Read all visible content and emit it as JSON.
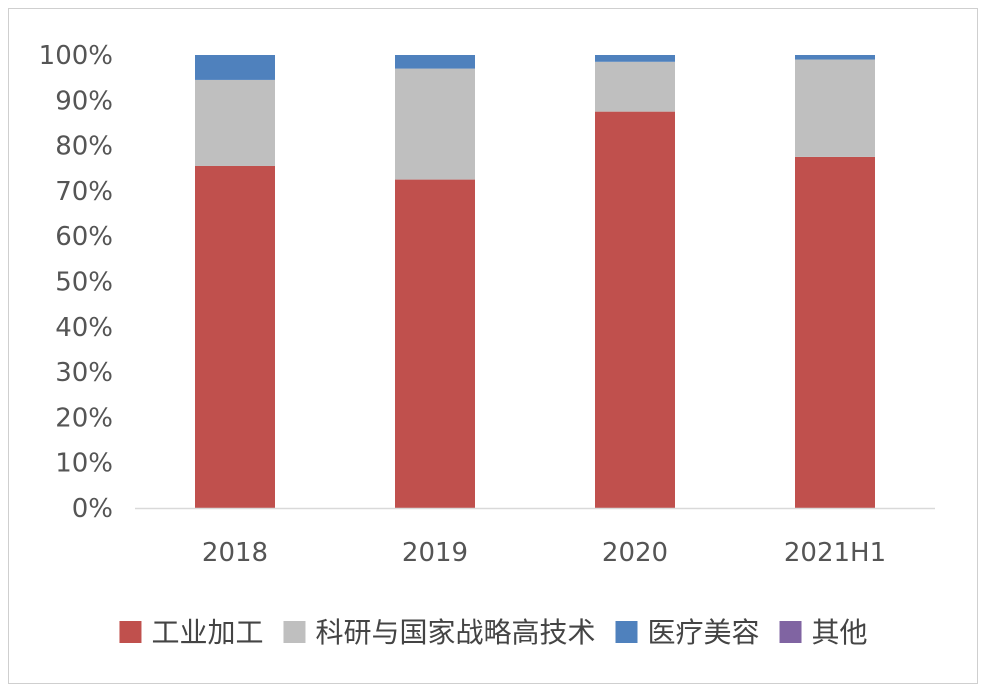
{
  "chart_data": {
    "type": "bar",
    "stacked": true,
    "title": "",
    "xlabel": "",
    "ylabel": "",
    "ylim": [
      0,
      100
    ],
    "y_ticks": [
      "0%",
      "10%",
      "20%",
      "30%",
      "40%",
      "50%",
      "60%",
      "70%",
      "80%",
      "90%",
      "100%"
    ],
    "categories": [
      "2018",
      "2019",
      "2020",
      "2021H1"
    ],
    "series": [
      {
        "name": "工业加工",
        "color": "#c0504d",
        "values": [
          75.5,
          72.5,
          87.5,
          77.5
        ]
      },
      {
        "name": "科研与国家战略高技术",
        "color": "#bfbfbf",
        "values": [
          19,
          24.5,
          11,
          21.5
        ]
      },
      {
        "name": "医疗美容",
        "color": "#4f81bd",
        "values": [
          5.5,
          3,
          1.5,
          1
        ]
      },
      {
        "name": "其他",
        "color": "#8064a2",
        "values": [
          0,
          0,
          0,
          0
        ]
      }
    ],
    "legend_position": "bottom",
    "grid": false
  }
}
